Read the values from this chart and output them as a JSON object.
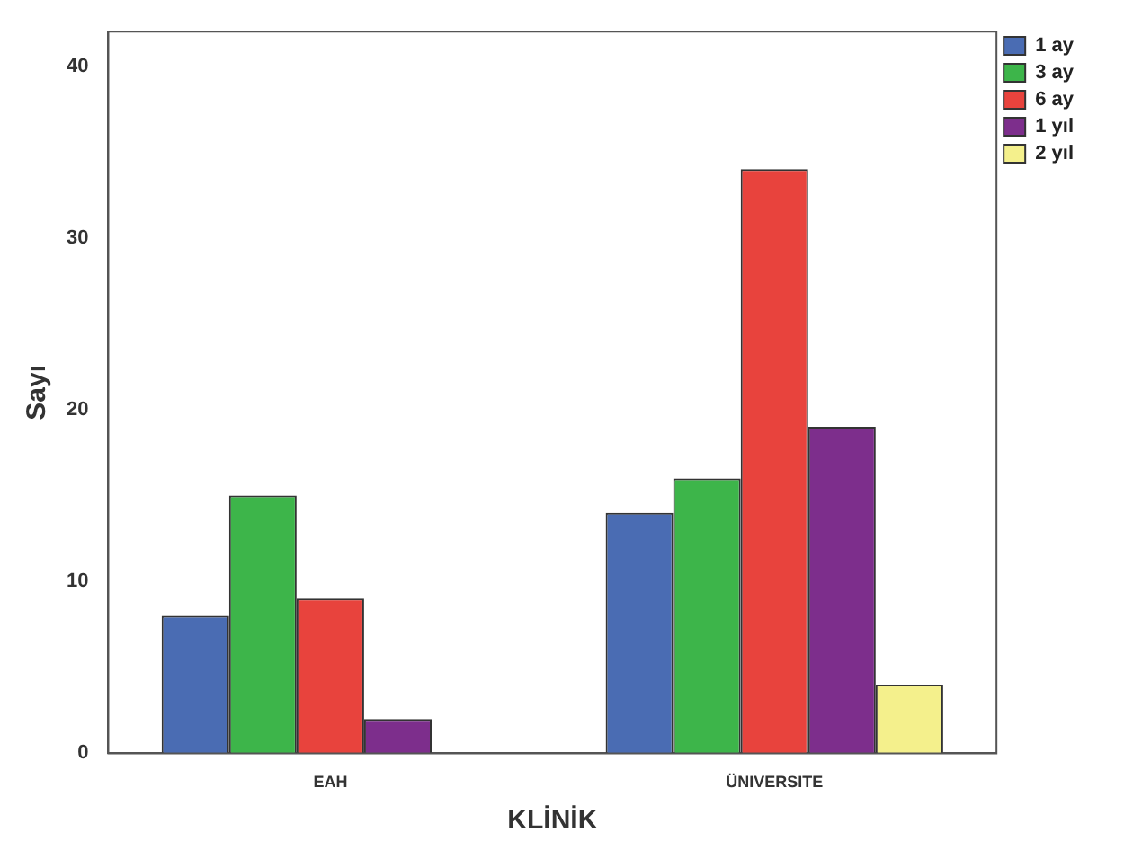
{
  "chart_data": {
    "type": "bar",
    "xlabel": "KLİNİK",
    "ylabel": "Sayı",
    "categories": [
      "EAH",
      "ÜNIVERSITE"
    ],
    "series": [
      {
        "name": "1 ay",
        "color": "#4a6cb3",
        "values": [
          8,
          14
        ]
      },
      {
        "name": "3 ay",
        "color": "#3db54a",
        "values": [
          15,
          16
        ]
      },
      {
        "name": "6 ay",
        "color": "#e8433d",
        "values": [
          9,
          34
        ]
      },
      {
        "name": "1 yıl",
        "color": "#7d2e8c",
        "values": [
          2,
          19
        ]
      },
      {
        "name": "2 yıl",
        "color": "#f4f08c",
        "values": [
          null,
          4
        ]
      }
    ],
    "ylim": [
      0,
      42
    ],
    "yticks": [
      0,
      10,
      20,
      30,
      40
    ],
    "grid": false,
    "legend": "top right"
  }
}
